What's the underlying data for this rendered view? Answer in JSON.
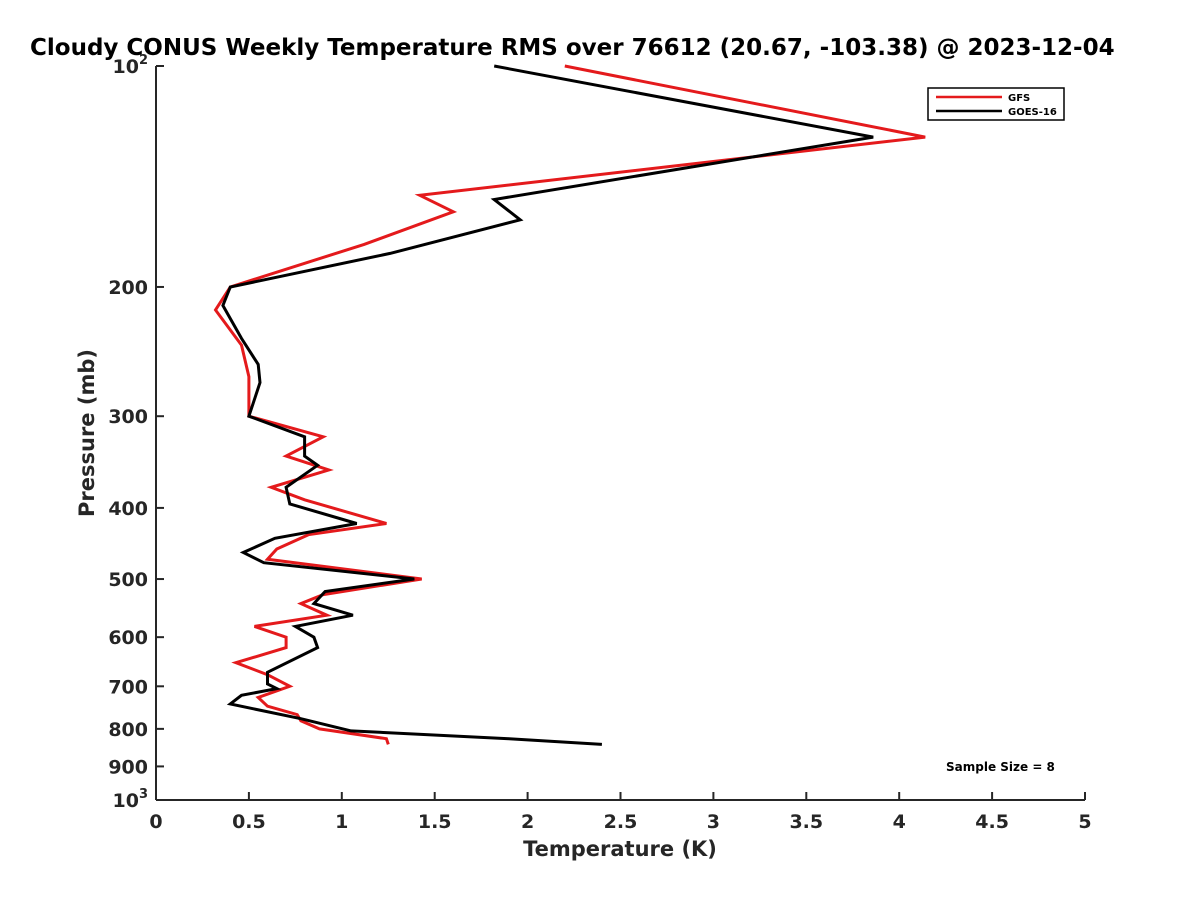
{
  "chart_data": {
    "type": "line",
    "title": "Cloudy CONUS Weekly Temperature RMS over 76612 (20.67, -103.38) @ 2023-12-04",
    "xlabel": "Temperature (K)",
    "ylabel": "Pressure (mb)",
    "xlim": [
      0,
      5
    ],
    "ylim": [
      100,
      1000
    ],
    "yscale": "log",
    "yreversed": true,
    "grid": false,
    "legend_position": "top-right",
    "x_ticks": [
      {
        "value": 0,
        "label": "0"
      },
      {
        "value": 0.5,
        "label": "0.5"
      },
      {
        "value": 1,
        "label": "1"
      },
      {
        "value": 1.5,
        "label": "1.5"
      },
      {
        "value": 2,
        "label": "2"
      },
      {
        "value": 2.5,
        "label": "2.5"
      },
      {
        "value": 3,
        "label": "3"
      },
      {
        "value": 3.5,
        "label": "3.5"
      },
      {
        "value": 4,
        "label": "4"
      },
      {
        "value": 4.5,
        "label": "4.5"
      },
      {
        "value": 5,
        "label": "5"
      }
    ],
    "y_ticks": [
      {
        "value": 100,
        "base": "10",
        "exp": "2"
      },
      {
        "value": 200,
        "label": "200"
      },
      {
        "value": 300,
        "label": "300"
      },
      {
        "value": 400,
        "label": "400"
      },
      {
        "value": 500,
        "label": "500"
      },
      {
        "value": 600,
        "label": "600"
      },
      {
        "value": 700,
        "label": "700"
      },
      {
        "value": 800,
        "label": "800"
      },
      {
        "value": 900,
        "label": "900"
      },
      {
        "value": 1000,
        "base": "10",
        "exp": "3"
      }
    ],
    "series": [
      {
        "name": "GFS",
        "color": "#e41a1c",
        "points": [
          [
            2.2,
            100
          ],
          [
            4.14,
            125
          ],
          [
            1.42,
            150
          ],
          [
            1.6,
            158
          ],
          [
            1.12,
            175
          ],
          [
            0.4,
            200
          ],
          [
            0.32,
            215
          ],
          [
            0.46,
            240
          ],
          [
            0.5,
            265
          ],
          [
            0.5,
            290
          ],
          [
            0.5,
            300
          ],
          [
            0.9,
            320
          ],
          [
            0.7,
            340
          ],
          [
            0.93,
            355
          ],
          [
            0.62,
            375
          ],
          [
            0.8,
            390
          ],
          [
            1.24,
            420
          ],
          [
            0.82,
            435
          ],
          [
            0.65,
            455
          ],
          [
            0.6,
            470
          ],
          [
            1.43,
            500
          ],
          [
            0.9,
            525
          ],
          [
            0.78,
            540
          ],
          [
            0.92,
            560
          ],
          [
            0.53,
            580
          ],
          [
            0.7,
            600
          ],
          [
            0.7,
            620
          ],
          [
            0.43,
            650
          ],
          [
            0.6,
            675
          ],
          [
            0.72,
            700
          ],
          [
            0.55,
            725
          ],
          [
            0.6,
            745
          ],
          [
            0.76,
            765
          ],
          [
            0.78,
            780
          ],
          [
            0.88,
            800
          ],
          [
            1.24,
            825
          ],
          [
            1.25,
            840
          ]
        ]
      },
      {
        "name": "GOES-16",
        "color": "#000000",
        "points": [
          [
            1.82,
            100
          ],
          [
            3.86,
            125
          ],
          [
            1.82,
            152
          ],
          [
            1.96,
            162
          ],
          [
            1.26,
            180
          ],
          [
            0.4,
            200
          ],
          [
            0.36,
            212
          ],
          [
            0.46,
            235
          ],
          [
            0.55,
            255
          ],
          [
            0.56,
            270
          ],
          [
            0.5,
            300
          ],
          [
            0.8,
            320
          ],
          [
            0.8,
            340
          ],
          [
            0.87,
            350
          ],
          [
            0.7,
            375
          ],
          [
            0.72,
            395
          ],
          [
            1.08,
            420
          ],
          [
            0.64,
            440
          ],
          [
            0.47,
            460
          ],
          [
            0.58,
            475
          ],
          [
            1.39,
            500
          ],
          [
            0.91,
            520
          ],
          [
            0.85,
            540
          ],
          [
            1.06,
            560
          ],
          [
            0.75,
            580
          ],
          [
            0.85,
            600
          ],
          [
            0.87,
            620
          ],
          [
            0.6,
            670
          ],
          [
            0.6,
            695
          ],
          [
            0.65,
            705
          ],
          [
            0.46,
            720
          ],
          [
            0.4,
            740
          ],
          [
            0.78,
            775
          ],
          [
            1.05,
            805
          ],
          [
            1.9,
            825
          ],
          [
            2.4,
            840
          ]
        ]
      }
    ],
    "legend": [
      {
        "name": "GFS",
        "color": "#e41a1c"
      },
      {
        "name": "GOES-16",
        "color": "#000000"
      }
    ],
    "annotation": "Sample Size = 8"
  }
}
